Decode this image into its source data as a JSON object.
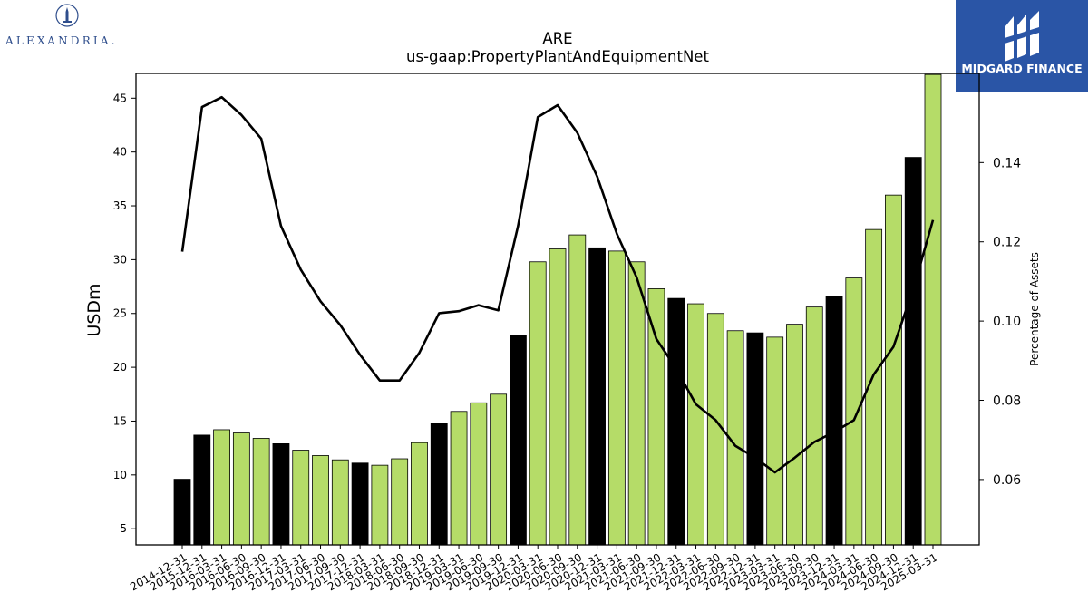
{
  "logos": {
    "left": {
      "name": "alexandria-seal-icon",
      "text": "ALEXANDRIA."
    },
    "right": {
      "name": "midgard-finance-mark-icon",
      "text": "MIDGARD FINANCE",
      "background": "#2a55a6"
    }
  },
  "chart_data": {
    "type": "bar",
    "title": "ARE",
    "subtitle": "us-gaap:PropertyPlantAndEquipmentNet",
    "ylabel": "USDm",
    "y2label": "Percentage of Assets",
    "ylim": [
      3.5,
      47.3
    ],
    "y2lim": [
      0.0435,
      0.1625
    ],
    "yticks": [
      5,
      10,
      15,
      20,
      25,
      30,
      35,
      40,
      45
    ],
    "y2ticks": [
      0.06,
      0.08,
      0.1,
      0.12,
      0.14
    ],
    "y2tick_labels": [
      "0.06",
      "0.08",
      "0.10",
      "0.12",
      "0.14"
    ],
    "grid": false,
    "colors": {
      "bar_q4": "#000000",
      "bar_other": "#b5dc68",
      "line": "#000000"
    },
    "categories": [
      "2014-12-31",
      "2015-12-31",
      "2016-03-31",
      "2016-06-30",
      "2016-09-30",
      "2016-12-31",
      "2017-03-31",
      "2017-06-30",
      "2017-09-30",
      "2017-12-31",
      "2018-03-31",
      "2018-06-30",
      "2018-09-30",
      "2018-12-31",
      "2019-03-31",
      "2019-06-30",
      "2019-09-30",
      "2019-12-31",
      "2020-03-31",
      "2020-06-30",
      "2020-09-30",
      "2020-12-31",
      "2021-03-31",
      "2021-06-30",
      "2021-09-30",
      "2021-12-31",
      "2022-03-31",
      "2022-06-30",
      "2022-09-30",
      "2022-12-31",
      "2023-03-31",
      "2023-06-30",
      "2023-09-30",
      "2023-12-31",
      "2024-03-31",
      "2024-06-30",
      "2024-09-30",
      "2024-12-31",
      "2025-03-31"
    ],
    "series": [
      {
        "kind": "bar",
        "values": [
          9.6,
          13.7,
          14.2,
          13.9,
          13.4,
          12.9,
          12.3,
          11.8,
          11.4,
          11.1,
          10.9,
          11.5,
          13.0,
          14.8,
          15.9,
          16.7,
          17.5,
          23.0,
          29.8,
          31.0,
          32.3,
          31.1,
          30.8,
          29.8,
          27.3,
          26.4,
          25.9,
          25.0,
          23.4,
          23.2,
          22.8,
          24.0,
          25.6,
          26.6,
          28.3,
          32.8,
          36.0,
          39.5,
          47.2
        ],
        "highlight": [
          true,
          true,
          false,
          false,
          false,
          true,
          false,
          false,
          false,
          true,
          false,
          false,
          false,
          true,
          false,
          false,
          false,
          true,
          false,
          false,
          false,
          true,
          false,
          false,
          false,
          true,
          false,
          false,
          false,
          true,
          false,
          false,
          false,
          true,
          false,
          false,
          false,
          true,
          false
        ]
      },
      {
        "kind": "line",
        "axis": "right",
        "values": [
          0.1175,
          0.154,
          0.1565,
          0.152,
          0.146,
          0.124,
          0.113,
          0.105,
          0.099,
          0.0915,
          0.085,
          0.085,
          0.092,
          0.102,
          0.1025,
          0.104,
          0.1027,
          0.124,
          0.1515,
          0.1545,
          0.1475,
          0.1365,
          0.122,
          0.111,
          0.0955,
          0.088,
          0.079,
          0.075,
          0.0685,
          0.0655,
          0.0618,
          0.0655,
          0.0695,
          0.072,
          0.075,
          0.0865,
          0.0935,
          0.108,
          0.1255
        ]
      }
    ]
  }
}
